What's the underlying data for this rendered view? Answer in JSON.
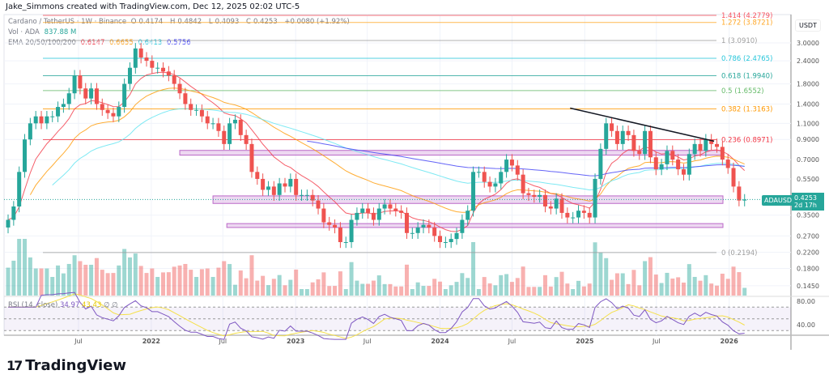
{
  "credit": "Jake_Simmons created with TradingView.com, Dec 12, 2025 02:02 UTC-5",
  "legend": {
    "symbol": "Cardano / TetherUS · 1W · Binance",
    "o_label": "O",
    "o": "0.4174",
    "h_label": "H",
    "h": "0.4842",
    "l_label": "L",
    "l": "0.4093",
    "c_label": "C",
    "c": "0.4253",
    "change": "+0.0080 (+1.92%)",
    "vol_label": "Vol · ADA",
    "vol": "837.88 M",
    "ema_label": "EMA 20/50/100/200",
    "ema20": "0.6147",
    "ema50": "0.6655",
    "ema100": "0.6413",
    "ema200": "0.5756"
  },
  "rsi_legend": {
    "label": "RSI (14, close)",
    "rsi": "34.97",
    "ma": "43.43",
    "n1": "∅",
    "n2": "∅"
  },
  "price_axis": {
    "unit": "USDT",
    "ticks": [
      "3.0000",
      "2.4000",
      "1.8000",
      "1.4000",
      "1.1000",
      "0.9000",
      "0.7000",
      "0.5500",
      "0.3500",
      "0.2700",
      "0.2200",
      "0.1800",
      "0.1450"
    ]
  },
  "rsi_axis": {
    "ticks": [
      "80.00",
      "40.00"
    ]
  },
  "last_price": {
    "symbol": "ADAUSDT",
    "price": "0.4253",
    "countdown": "2d 17h"
  },
  "logo": "TradingView",
  "colors": {
    "up": "#26a69a",
    "down": "#ef5350",
    "ema20": "#f23645",
    "ema50": "#ff9800",
    "ema100": "#5ee3f0",
    "ema200": "#3d3df5",
    "rsi": "#7e57c2",
    "rsi_ma": "#f5e04a",
    "zone": "#ce93d8"
  },
  "chart_data": {
    "type": "candlestick",
    "symbol": "ADAUSDT",
    "interval": "1W",
    "scale": "log",
    "ylim": [
      0.14,
      4.3
    ],
    "start": "2021-01-04",
    "sample_step_weeks": 2,
    "closes": [
      0.33,
      0.39,
      0.6,
      0.9,
      1.1,
      1.2,
      1.1,
      1.2,
      1.2,
      1.35,
      1.4,
      1.6,
      2.0,
      1.7,
      1.5,
      1.7,
      1.4,
      1.3,
      1.25,
      1.2,
      1.35,
      1.8,
      2.2,
      2.8,
      2.5,
      2.4,
      2.2,
      2.2,
      2.1,
      2.0,
      1.8,
      1.6,
      1.4,
      1.3,
      1.3,
      1.2,
      1.1,
      1.1,
      1.0,
      0.85,
      1.1,
      1.15,
      0.95,
      0.85,
      0.6,
      0.55,
      0.48,
      0.5,
      0.45,
      0.52,
      0.5,
      0.55,
      0.45,
      0.45,
      0.45,
      0.42,
      0.38,
      0.32,
      0.31,
      0.3,
      0.25,
      0.25,
      0.33,
      0.36,
      0.38,
      0.36,
      0.33,
      0.38,
      0.4,
      0.38,
      0.37,
      0.36,
      0.28,
      0.28,
      0.3,
      0.31,
      0.3,
      0.27,
      0.25,
      0.25,
      0.26,
      0.28,
      0.33,
      0.37,
      0.6,
      0.6,
      0.53,
      0.5,
      0.52,
      0.6,
      0.7,
      0.65,
      0.58,
      0.46,
      0.45,
      0.44,
      0.45,
      0.39,
      0.38,
      0.43,
      0.36,
      0.34,
      0.34,
      0.37,
      0.36,
      0.34,
      0.55,
      0.8,
      1.1,
      1.0,
      0.85,
      1.0,
      0.95,
      0.78,
      0.75,
      1.0,
      0.72,
      0.62,
      0.66,
      0.78,
      0.7,
      0.62,
      0.58,
      0.75,
      0.85,
      0.78,
      0.9,
      0.85,
      0.82,
      0.7,
      0.63,
      0.5,
      0.42,
      0.4253
    ],
    "fib_levels": [
      {
        "ratio": "1.414",
        "price": 4.2779,
        "label": "1.414 (4.2779)",
        "color": "#f7525f"
      },
      {
        "ratio": "1.272",
        "price": 3.8721,
        "label": "1.272 (3.8721)",
        "color": "#ffa726"
      },
      {
        "ratio": "1",
        "price": 3.091,
        "label": "1 (3.0910)",
        "color": "#9e9e9e"
      },
      {
        "ratio": "0.786",
        "price": 2.4765,
        "label": "0.786 (2.4765)",
        "color": "#26c6da"
      },
      {
        "ratio": "0.618",
        "price": 1.994,
        "label": "0.618 (1.9940)",
        "color": "#26a69a"
      },
      {
        "ratio": "0.5",
        "price": 1.6552,
        "label": "0.5 (1.6552)",
        "color": "#66bb6a"
      },
      {
        "ratio": "0.382",
        "price": 1.3163,
        "label": "0.382 (1.3163)",
        "color": "#ff9800"
      },
      {
        "ratio": "0.236",
        "price": 0.8971,
        "label": "0.236 (0.8971)",
        "color": "#f23645"
      },
      {
        "ratio": "0",
        "price": 0.2194,
        "label": "0 (0.2194)",
        "color": "#9e9e9e"
      }
    ],
    "zones": [
      {
        "from": "2022-03-14",
        "low": 0.74,
        "high": 0.785
      },
      {
        "from": "2022-06-06",
        "low": 0.405,
        "high": 0.445
      },
      {
        "from": "2022-07-11",
        "low": 0.3,
        "high": 0.315
      }
    ],
    "trendline": [
      {
        "date": "2024-11-25",
        "price": 1.33
      },
      {
        "date": "2025-11-24",
        "price": 0.88
      }
    ],
    "x_ticks": [
      {
        "date": "2021-07-01",
        "label": "Jul"
      },
      {
        "date": "2022-01-01",
        "label": "2022"
      },
      {
        "date": "2022-07-01",
        "label": "Jul"
      },
      {
        "date": "2023-01-01",
        "label": "2023"
      },
      {
        "date": "2023-07-01",
        "label": "Jul"
      },
      {
        "date": "2024-01-01",
        "label": "2024"
      },
      {
        "date": "2024-07-01",
        "label": "Jul"
      },
      {
        "date": "2025-01-01",
        "label": "2025"
      },
      {
        "date": "2025-07-01",
        "label": "Jul"
      },
      {
        "date": "2026-01-01",
        "label": "2026"
      }
    ]
  }
}
